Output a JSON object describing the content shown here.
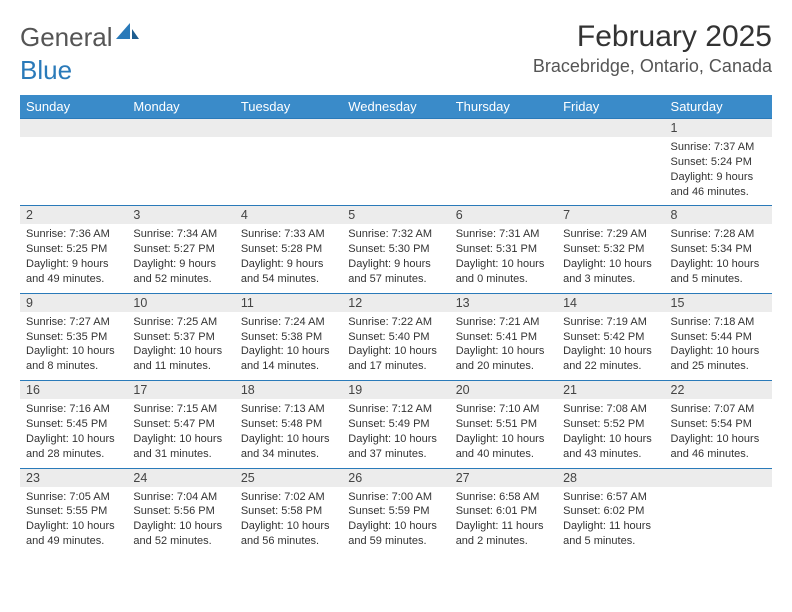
{
  "logo": {
    "text1": "General",
    "text2": "Blue",
    "colors": {
      "gray": "#777777",
      "blue": "#2a7ab9"
    }
  },
  "title": "February 2025",
  "location": "Bracebridge, Ontario, Canada",
  "header_bg": "#3a8bc9",
  "daynum_bg": "#ececec",
  "border_color": "#2a7ab9",
  "days": [
    "Sunday",
    "Monday",
    "Tuesday",
    "Wednesday",
    "Thursday",
    "Friday",
    "Saturday"
  ],
  "weeks": [
    [
      null,
      null,
      null,
      null,
      null,
      null,
      {
        "n": "1",
        "sr": "7:37 AM",
        "ss": "5:24 PM",
        "dl": "9 hours and 46 minutes."
      }
    ],
    [
      {
        "n": "2",
        "sr": "7:36 AM",
        "ss": "5:25 PM",
        "dl": "9 hours and 49 minutes."
      },
      {
        "n": "3",
        "sr": "7:34 AM",
        "ss": "5:27 PM",
        "dl": "9 hours and 52 minutes."
      },
      {
        "n": "4",
        "sr": "7:33 AM",
        "ss": "5:28 PM",
        "dl": "9 hours and 54 minutes."
      },
      {
        "n": "5",
        "sr": "7:32 AM",
        "ss": "5:30 PM",
        "dl": "9 hours and 57 minutes."
      },
      {
        "n": "6",
        "sr": "7:31 AM",
        "ss": "5:31 PM",
        "dl": "10 hours and 0 minutes."
      },
      {
        "n": "7",
        "sr": "7:29 AM",
        "ss": "5:32 PM",
        "dl": "10 hours and 3 minutes."
      },
      {
        "n": "8",
        "sr": "7:28 AM",
        "ss": "5:34 PM",
        "dl": "10 hours and 5 minutes."
      }
    ],
    [
      {
        "n": "9",
        "sr": "7:27 AM",
        "ss": "5:35 PM",
        "dl": "10 hours and 8 minutes."
      },
      {
        "n": "10",
        "sr": "7:25 AM",
        "ss": "5:37 PM",
        "dl": "10 hours and 11 minutes."
      },
      {
        "n": "11",
        "sr": "7:24 AM",
        "ss": "5:38 PM",
        "dl": "10 hours and 14 minutes."
      },
      {
        "n": "12",
        "sr": "7:22 AM",
        "ss": "5:40 PM",
        "dl": "10 hours and 17 minutes."
      },
      {
        "n": "13",
        "sr": "7:21 AM",
        "ss": "5:41 PM",
        "dl": "10 hours and 20 minutes."
      },
      {
        "n": "14",
        "sr": "7:19 AM",
        "ss": "5:42 PM",
        "dl": "10 hours and 22 minutes."
      },
      {
        "n": "15",
        "sr": "7:18 AM",
        "ss": "5:44 PM",
        "dl": "10 hours and 25 minutes."
      }
    ],
    [
      {
        "n": "16",
        "sr": "7:16 AM",
        "ss": "5:45 PM",
        "dl": "10 hours and 28 minutes."
      },
      {
        "n": "17",
        "sr": "7:15 AM",
        "ss": "5:47 PM",
        "dl": "10 hours and 31 minutes."
      },
      {
        "n": "18",
        "sr": "7:13 AM",
        "ss": "5:48 PM",
        "dl": "10 hours and 34 minutes."
      },
      {
        "n": "19",
        "sr": "7:12 AM",
        "ss": "5:49 PM",
        "dl": "10 hours and 37 minutes."
      },
      {
        "n": "20",
        "sr": "7:10 AM",
        "ss": "5:51 PM",
        "dl": "10 hours and 40 minutes."
      },
      {
        "n": "21",
        "sr": "7:08 AM",
        "ss": "5:52 PM",
        "dl": "10 hours and 43 minutes."
      },
      {
        "n": "22",
        "sr": "7:07 AM",
        "ss": "5:54 PM",
        "dl": "10 hours and 46 minutes."
      }
    ],
    [
      {
        "n": "23",
        "sr": "7:05 AM",
        "ss": "5:55 PM",
        "dl": "10 hours and 49 minutes."
      },
      {
        "n": "24",
        "sr": "7:04 AM",
        "ss": "5:56 PM",
        "dl": "10 hours and 52 minutes."
      },
      {
        "n": "25",
        "sr": "7:02 AM",
        "ss": "5:58 PM",
        "dl": "10 hours and 56 minutes."
      },
      {
        "n": "26",
        "sr": "7:00 AM",
        "ss": "5:59 PM",
        "dl": "10 hours and 59 minutes."
      },
      {
        "n": "27",
        "sr": "6:58 AM",
        "ss": "6:01 PM",
        "dl": "11 hours and 2 minutes."
      },
      {
        "n": "28",
        "sr": "6:57 AM",
        "ss": "6:02 PM",
        "dl": "11 hours and 5 minutes."
      },
      null
    ]
  ],
  "labels": {
    "sunrise": "Sunrise:",
    "sunset": "Sunset:",
    "daylight": "Daylight:"
  }
}
